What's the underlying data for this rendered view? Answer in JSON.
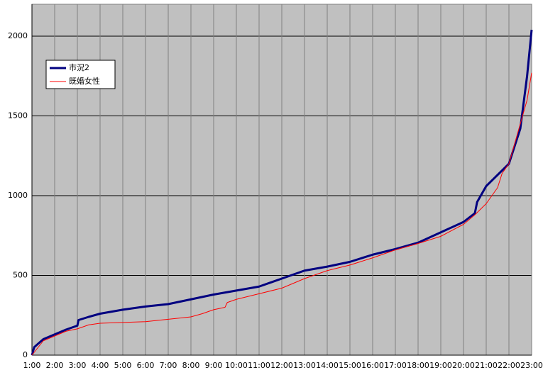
{
  "chart_data": {
    "type": "line",
    "xlim": [
      1,
      23
    ],
    "xticks": [
      {
        "value": 1,
        "label": "1:00"
      },
      {
        "value": 2,
        "label": "2:00"
      },
      {
        "value": 3,
        "label": "3:00"
      },
      {
        "value": 4,
        "label": "4:00"
      },
      {
        "value": 5,
        "label": "5:00"
      },
      {
        "value": 6,
        "label": "6:00"
      },
      {
        "value": 7,
        "label": "7:00"
      },
      {
        "value": 8,
        "label": "8:00"
      },
      {
        "value": 9,
        "label": "9:00"
      },
      {
        "value": 10,
        "label": "10:00"
      },
      {
        "value": 11,
        "label": "11:00"
      },
      {
        "value": 12,
        "label": "12:00"
      },
      {
        "value": 13,
        "label": "13:00"
      },
      {
        "value": 14,
        "label": "14:00"
      },
      {
        "value": 15,
        "label": "15:00"
      },
      {
        "value": 16,
        "label": "16:00"
      },
      {
        "value": 17,
        "label": "17:00"
      },
      {
        "value": 18,
        "label": "18:00"
      },
      {
        "value": 19,
        "label": "19:00"
      },
      {
        "value": 20,
        "label": "20:00"
      },
      {
        "value": 21,
        "label": "21:00"
      },
      {
        "value": 22,
        "label": "22:00"
      },
      {
        "value": 23,
        "label": "23:00"
      }
    ],
    "ylim": [
      0,
      2200
    ],
    "yticks": [
      0,
      500,
      1000,
      1500,
      2000
    ],
    "grid": true,
    "legend": "upper left",
    "series": [
      {
        "name": "市況2",
        "color": "#000080",
        "width": 3,
        "x": [
          1,
          1.1,
          1.5,
          2,
          2.5,
          3,
          3.05,
          3.5,
          4,
          5,
          6,
          7,
          8,
          9,
          10,
          11,
          12,
          13,
          14,
          15,
          16,
          17,
          18,
          19,
          20,
          20.5,
          20.6,
          21,
          21.5,
          22,
          22.5,
          22.8,
          23
        ],
        "values": [
          0,
          50,
          100,
          130,
          160,
          185,
          220,
          240,
          260,
          285,
          305,
          320,
          350,
          380,
          405,
          430,
          480,
          530,
          555,
          585,
          630,
          665,
          705,
          770,
          835,
          890,
          960,
          1060,
          1130,
          1200,
          1420,
          1750,
          2040
        ]
      },
      {
        "name": "既婚女性",
        "color": "#ff0000",
        "width": 1,
        "x": [
          1,
          1.5,
          2,
          2.5,
          3,
          3.5,
          4,
          5,
          6,
          7,
          8,
          8.5,
          9,
          9.5,
          9.6,
          10,
          11,
          12,
          13,
          14,
          15,
          16,
          17,
          18,
          19,
          20,
          20.5,
          21,
          21.5,
          21.7,
          22,
          22.5,
          22.8,
          23
        ],
        "values": [
          0,
          90,
          120,
          150,
          165,
          190,
          200,
          205,
          210,
          225,
          240,
          260,
          285,
          300,
          330,
          350,
          385,
          420,
          480,
          530,
          565,
          610,
          660,
          700,
          745,
          820,
          880,
          950,
          1050,
          1140,
          1200,
          1450,
          1600,
          1770
        ]
      }
    ]
  }
}
